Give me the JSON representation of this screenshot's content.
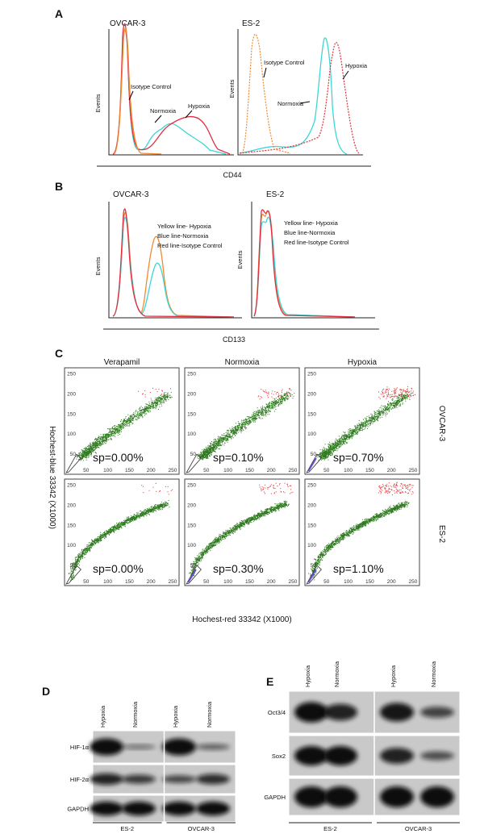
{
  "panel_a": {
    "label": "A",
    "x_label": "CD44",
    "plots": [
      {
        "title": "OVCAR-3",
        "y_label": "Events",
        "annotations": [
          "Isotype Control",
          "Normoxia",
          "Hypoxia"
        ]
      },
      {
        "title": "ES-2",
        "y_label": "Events",
        "annotations": [
          "Isotype Control",
          "Normoxia",
          "Hypoxia"
        ]
      }
    ]
  },
  "panel_b": {
    "label": "B",
    "x_label": "CD133",
    "plots": [
      {
        "title": "OVCAR-3",
        "y_label": "Events",
        "legend": [
          "Yellow line- Hypoxia",
          "Blue line-Normoxia",
          "Red line-Isotype Control"
        ]
      },
      {
        "title": "ES-2",
        "y_label": "Events",
        "legend": [
          "Yellow line- Hypoxia",
          "Blue line-Normoxia",
          "Red line-Isotype Control"
        ]
      }
    ]
  },
  "panel_c": {
    "label": "C",
    "columns": [
      "Verapamil",
      "Normoxia",
      "Hypoxia"
    ],
    "rows": [
      "OVCAR-3",
      "ES-2"
    ],
    "ticks": [
      50,
      100,
      150,
      200,
      250
    ],
    "y_label": "Hochest-blue  33342 (X1000)",
    "x_label": "Hochest-red  33342 (X1000)",
    "sp": [
      [
        "sp=0.00%",
        "sp=0.10%",
        "sp=0.70%"
      ],
      [
        "sp=0.00%",
        "sp=0.30%",
        "sp=1.10%"
      ]
    ]
  },
  "panel_d": {
    "label": "D",
    "lanes": [
      "Hypoxia",
      "Normoxia",
      "Hypoxia",
      "Normoxia"
    ],
    "proteins": [
      "HIF-1α",
      "HIF-2α",
      "GAPDH"
    ],
    "cell_lines": [
      "ES-2",
      "OVCAR-3"
    ]
  },
  "panel_e": {
    "label": "E",
    "lanes": [
      "Hypoxia",
      "Normoxia",
      "Hypoxia",
      "Normoxia"
    ],
    "proteins": [
      "Oct3/4",
      "Sox2",
      "GAPDH"
    ],
    "cell_lines": [
      "ES-2",
      "OVCAR-3"
    ]
  }
}
